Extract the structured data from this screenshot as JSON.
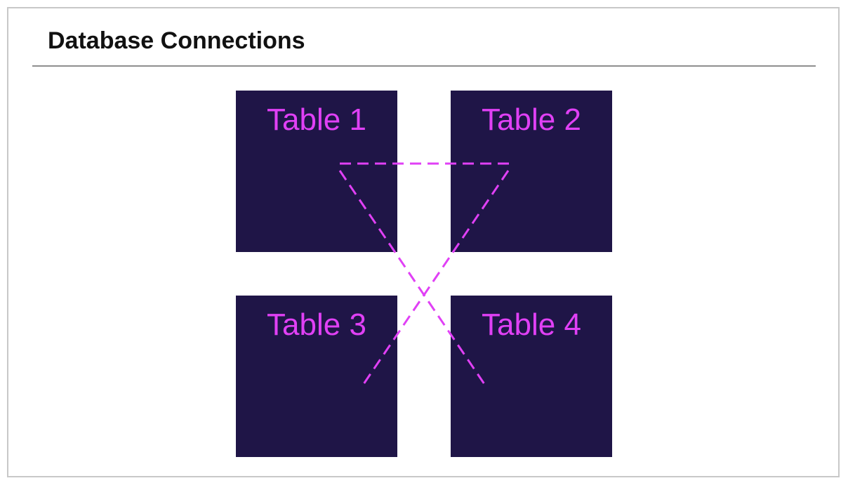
{
  "title": "Database Connections",
  "tables": [
    {
      "id": "t1",
      "label": "Table 1"
    },
    {
      "id": "t2",
      "label": "Table 2"
    },
    {
      "id": "t3",
      "label": "Table 3"
    },
    {
      "id": "t4",
      "label": "Table 4"
    }
  ],
  "connections": [
    {
      "from": "Table 1",
      "to": "Table 2",
      "style": "dashed"
    },
    {
      "from": "Table 1",
      "to": "Table 4",
      "style": "dashed"
    },
    {
      "from": "Table 2",
      "to": "Table 3",
      "style": "dashed"
    }
  ],
  "colors": {
    "table_fill": "#1f1547",
    "label": "#e040f5",
    "connector": "#e040f5",
    "rule": "#8e8e8e",
    "frame_border": "#c8c8c8"
  }
}
